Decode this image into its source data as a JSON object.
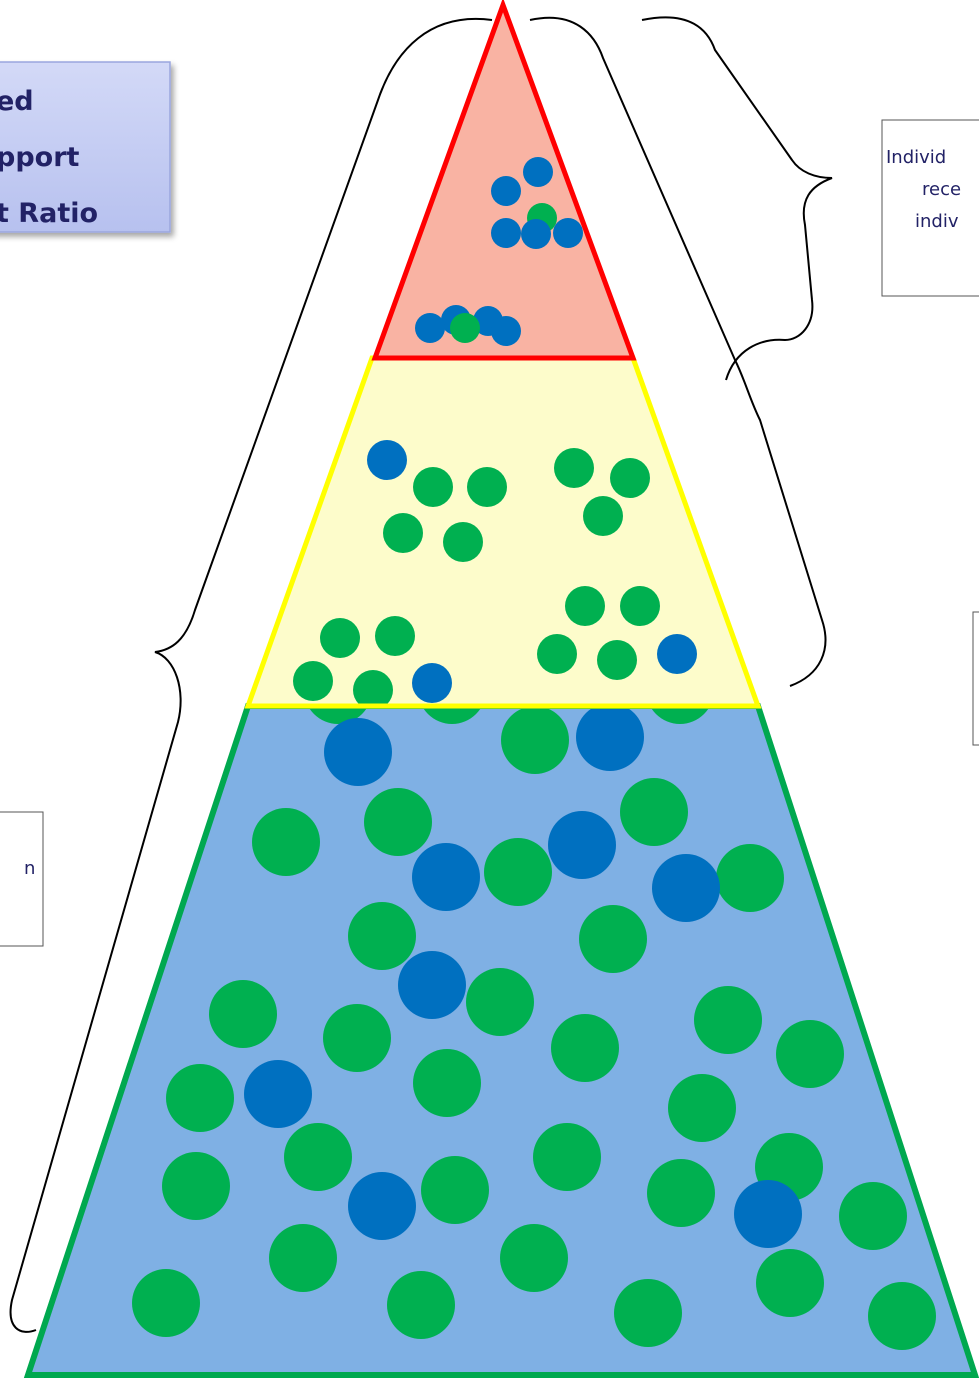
{
  "title_box": {
    "lines": [
      "ed",
      "pport",
      "t Ratio"
    ]
  },
  "right_box": {
    "lines": [
      "Individ",
      "rece",
      "indiv"
    ]
  },
  "left_box": {
    "lines": [
      "n"
    ]
  }
}
